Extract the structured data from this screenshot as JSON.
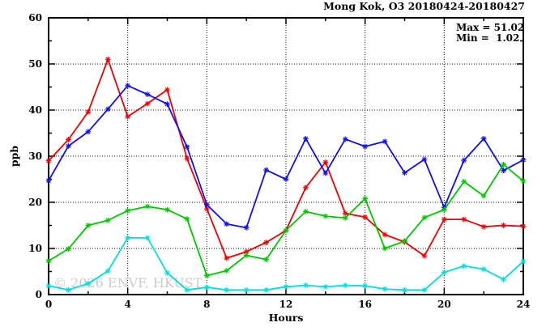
{
  "title": "Mong Kok, O3 20180424-20180427",
  "annotations": {
    "max_label": "Max = 51.02",
    "min_label": "Min =  1.02"
  },
  "watermark": "© 2026 ENVF, HKUST",
  "chart_data": {
    "type": "line",
    "title": "Mong Kok, O3 20180424-20180427",
    "xlabel": "Hours",
    "ylabel": "ppb",
    "xlim": [
      0,
      24
    ],
    "ylim": [
      0,
      60
    ],
    "x_major_ticks": [
      0,
      4,
      8,
      12,
      16,
      20,
      24
    ],
    "x_minor_ticks": [
      2,
      6,
      10,
      14,
      18,
      22
    ],
    "y_major_ticks": [
      0,
      10,
      20,
      30,
      40,
      50,
      60
    ],
    "y_minor_ticks": [
      5,
      15,
      25,
      35,
      45,
      55
    ],
    "grid": {
      "x": [
        4,
        8,
        12,
        16,
        20
      ],
      "y": [
        10,
        20,
        30,
        40,
        50
      ]
    },
    "legend_position": "none",
    "stat_max": 51.02,
    "stat_min": 1.02,
    "x": [
      0,
      1,
      2,
      3,
      4,
      5,
      6,
      7,
      8,
      9,
      10,
      11,
      12,
      13,
      14,
      15,
      16,
      17,
      18,
      19,
      20,
      21,
      22,
      23,
      24
    ],
    "series": [
      {
        "name": "red",
        "color": "#ee0000",
        "values": [
          29.0,
          33.6,
          39.6,
          51.0,
          38.6,
          41.4,
          44.4,
          29.5,
          18.6,
          7.9,
          9.3,
          11.3,
          13.9,
          23.2,
          28.7,
          17.6,
          16.8,
          13.0,
          11.4,
          8.4,
          16.3,
          16.3,
          14.7,
          15.0,
          14.8
        ]
      },
      {
        "name": "blue",
        "color": "#1010ee",
        "values": [
          24.7,
          32.2,
          35.3,
          40.2,
          45.3,
          43.4,
          41.3,
          32.0,
          19.5,
          15.3,
          14.5,
          27.0,
          25.0,
          33.8,
          26.3,
          33.7,
          32.1,
          33.2,
          26.4,
          29.3,
          18.9,
          29.1,
          33.8,
          26.9,
          29.2
        ]
      },
      {
        "name": "green",
        "color": "#00c800",
        "values": [
          7.3,
          9.9,
          15.0,
          16.1,
          18.2,
          19.1,
          18.4,
          16.4,
          4.1,
          5.2,
          8.5,
          7.6,
          13.9,
          18.0,
          17.0,
          16.6,
          20.8,
          10.0,
          11.6,
          16.7,
          18.4,
          24.5,
          21.4,
          28.2,
          24.6
        ]
      },
      {
        "name": "cyan",
        "color": "#00dede",
        "values": [
          1.9,
          1.0,
          2.4,
          5.1,
          12.3,
          12.3,
          4.7,
          1.0,
          1.6,
          1.0,
          1.0,
          1.0,
          1.7,
          2.0,
          1.7,
          2.0,
          1.9,
          1.2,
          1.0,
          1.0,
          4.8,
          6.2,
          5.5,
          3.3,
          7.2
        ]
      }
    ]
  }
}
